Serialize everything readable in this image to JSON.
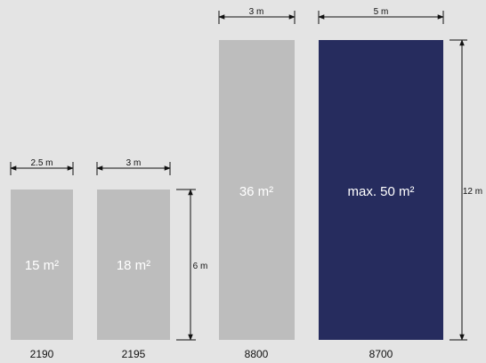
{
  "colors": {
    "background": "#e4e4e4",
    "panel_gray": "#bdbdbd",
    "panel_navy": "#262c5e",
    "line": "#111111",
    "panel_text": "#ffffff"
  },
  "panels": [
    {
      "model": "2190",
      "width_label": "2.5 m",
      "area_label": "15 m²",
      "highlight": false
    },
    {
      "model": "2195",
      "width_label": "3 m",
      "area_label": "18 m²",
      "highlight": false
    },
    {
      "model": "8800",
      "width_label": "3 m",
      "area_label": "36 m²",
      "highlight": false
    },
    {
      "model": "8700",
      "width_label": "5 m",
      "area_label": "max. 50 m²",
      "highlight": true
    }
  ],
  "height_dimensions": {
    "short": "6 m",
    "tall": "12 m"
  }
}
